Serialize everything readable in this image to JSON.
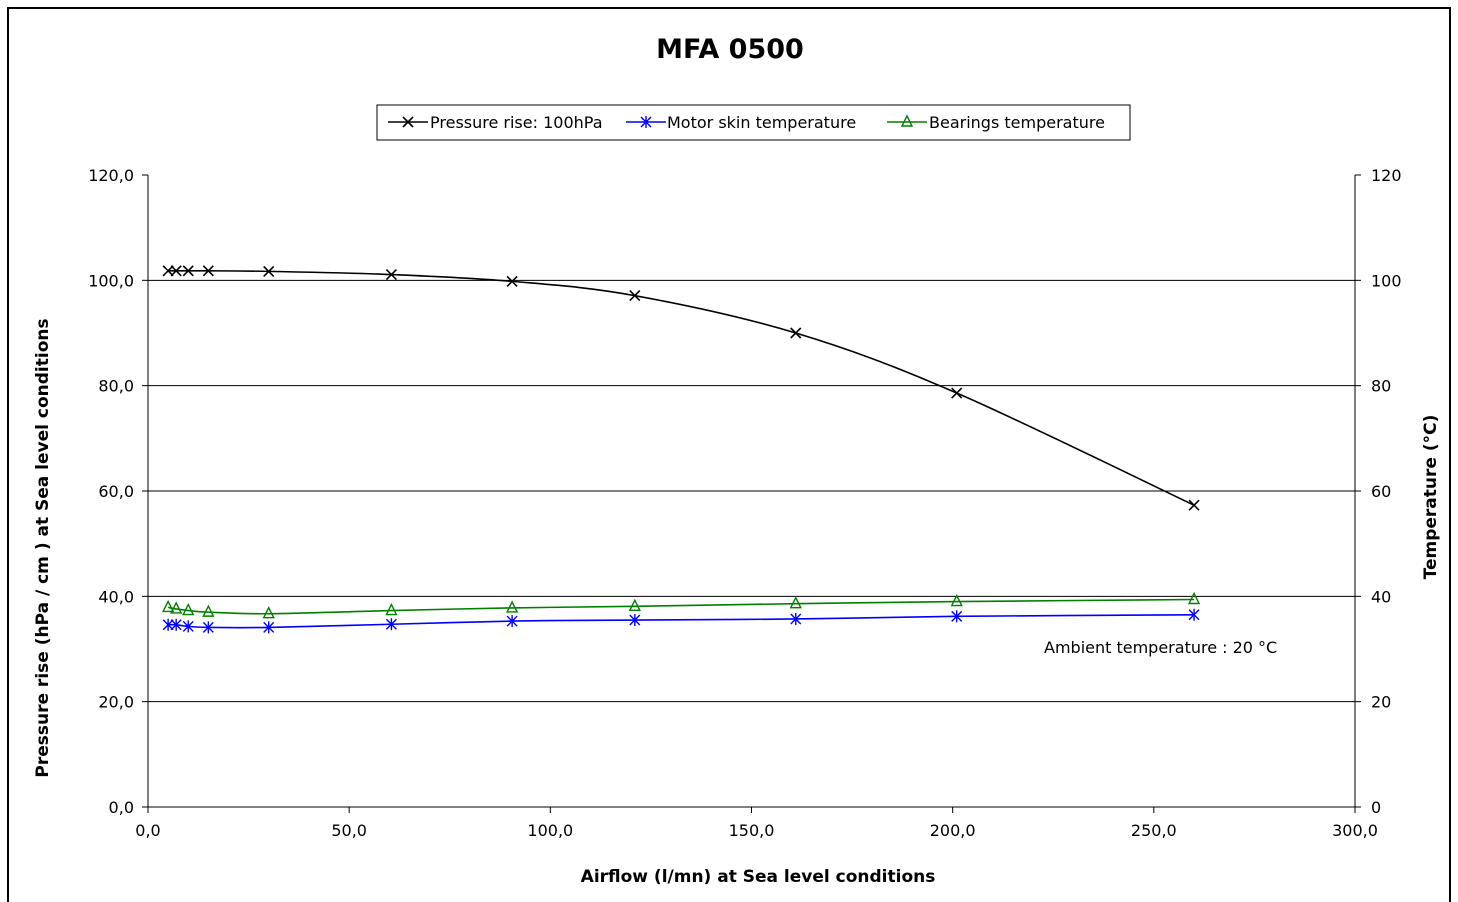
{
  "chart_data": {
    "type": "line",
    "title": "MFA 0500",
    "xlabel": "Airflow (l/mn) at Sea level conditions",
    "ylabel": "Pressure rise (hPa / cm ) at Sea level conditions",
    "y2label": "Temperature (°C)",
    "xlim": [
      0,
      300
    ],
    "ylim": [
      0,
      120
    ],
    "y2lim": [
      0,
      120
    ],
    "x_ticks": [
      "0,0",
      "50,0",
      "100,0",
      "150,0",
      "200,0",
      "250,0",
      "300,0"
    ],
    "y_ticks": [
      "0,0",
      "20,0",
      "40,0",
      "60,0",
      "80,0",
      "100,0",
      "120,0"
    ],
    "y2_ticks": [
      "0",
      "20",
      "40",
      "60",
      "80",
      "100",
      "120"
    ],
    "grid": "horizontal",
    "legend_position": "top-center",
    "annotation": "Ambient temperature : 20 °C",
    "series": [
      {
        "name": "Pressure rise: 100hPa",
        "color": "#000000",
        "marker": "x",
        "axis": "left",
        "points": [
          [
            5,
            101.8
          ],
          [
            7,
            101.8
          ],
          [
            10,
            101.8
          ],
          [
            15,
            101.8
          ],
          [
            30,
            101.7
          ],
          [
            60.5,
            101.1
          ],
          [
            90.5,
            99.8
          ],
          [
            121,
            97.1
          ],
          [
            161,
            90.0
          ],
          [
            201,
            78.6
          ],
          [
            260,
            57.3
          ]
        ]
      },
      {
        "name": "Motor skin temperature",
        "color": "#0000ff",
        "marker": "asterisk",
        "axis": "right",
        "points": [
          [
            5,
            34.6
          ],
          [
            7,
            34.6
          ],
          [
            10,
            34.3
          ],
          [
            15,
            34.1
          ],
          [
            30,
            34.1
          ],
          [
            60.5,
            34.7
          ],
          [
            90.5,
            35.3
          ],
          [
            121,
            35.5
          ],
          [
            161,
            35.7
          ],
          [
            201,
            36.2
          ],
          [
            260,
            36.5
          ]
        ]
      },
      {
        "name": "Bearings temperature",
        "color": "#008000",
        "marker": "triangle",
        "axis": "right",
        "points": [
          [
            5,
            37.9
          ],
          [
            7,
            37.6
          ],
          [
            10,
            37.3
          ],
          [
            15,
            37.0
          ],
          [
            30,
            36.7
          ],
          [
            60.5,
            37.3
          ],
          [
            90.5,
            37.8
          ],
          [
            121,
            38.1
          ],
          [
            161,
            38.6
          ],
          [
            201,
            39.0
          ],
          [
            260,
            39.4
          ]
        ]
      }
    ]
  }
}
